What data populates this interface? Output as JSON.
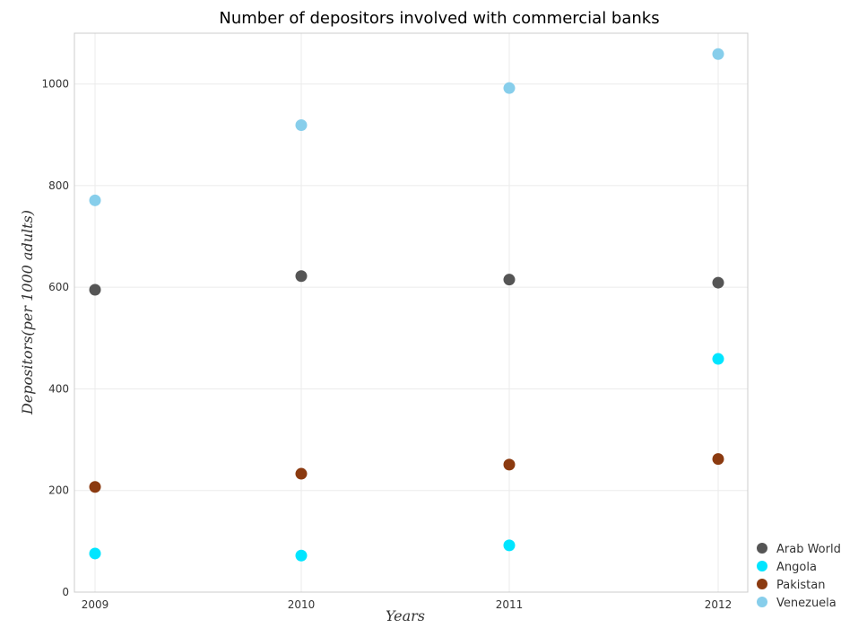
{
  "chart_data": {
    "type": "scatter",
    "title": "Number of depositors involved with commercial banks",
    "xlabel": "Years",
    "ylabel": "Depositors(per 1000 adults)",
    "categories": [
      "2009",
      "2010",
      "2011",
      "2012"
    ],
    "ylim": [
      0,
      1100
    ],
    "yticks": [
      "0",
      "200",
      "400",
      "600",
      "800",
      "1000"
    ],
    "grid": true,
    "legend_position": "bottom-right",
    "series": [
      {
        "name": "Arab World",
        "color": "#555555",
        "values": [
          595,
          622,
          615,
          609
        ]
      },
      {
        "name": "Angola",
        "color": "#00e5ff",
        "values": [
          76,
          72,
          92,
          459
        ]
      },
      {
        "name": "Pakistan",
        "color": "#8b3a10",
        "values": [
          207,
          233,
          251,
          262
        ]
      },
      {
        "name": "Venezuela",
        "color": "#87ceeb",
        "values": [
          771,
          919,
          992,
          1059
        ]
      }
    ]
  }
}
